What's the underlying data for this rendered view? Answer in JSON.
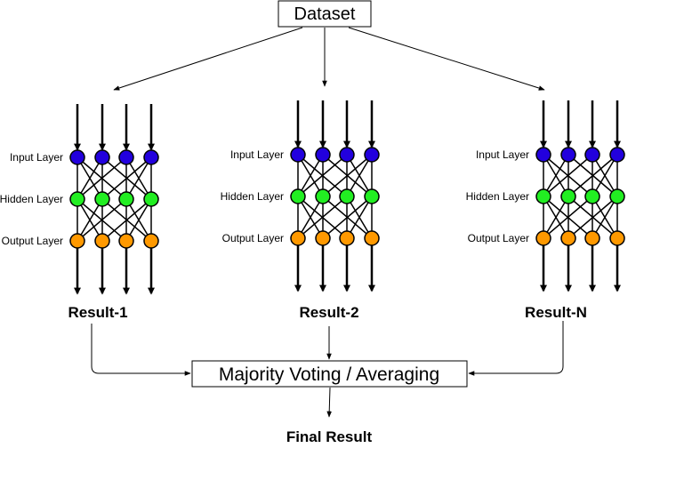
{
  "dataset": {
    "label": "Dataset"
  },
  "layer_names": {
    "input": "Input Layer",
    "hidden": "Hidden Layer",
    "output": "Output Layer"
  },
  "networks": [
    {
      "result": "Result-1"
    },
    {
      "result": "Result-2"
    },
    {
      "result": "Result-N"
    }
  ],
  "aggregator": {
    "label": "Majority Voting / Averaging"
  },
  "final": {
    "label": "Final Result"
  },
  "colors": {
    "input_node": "#2200dd",
    "hidden_node": "#22ee22",
    "output_node": "#ff9900",
    "stroke": "#000000"
  }
}
